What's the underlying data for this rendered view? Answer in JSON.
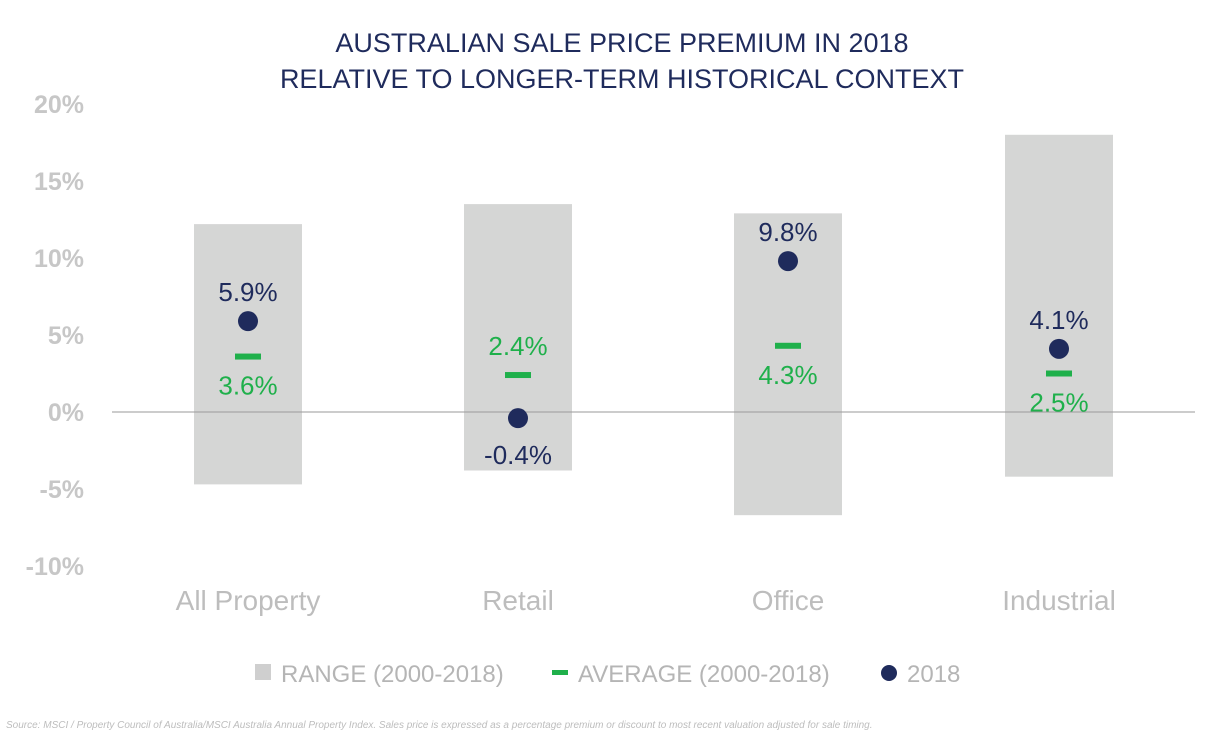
{
  "chart_data": {
    "type": "range-dot",
    "title": [
      "AUSTRALIAN SALE PRICE PREMIUM IN 2018",
      "RELATIVE TO LONGER-TERM HISTORICAL CONTEXT"
    ],
    "categories": [
      "All Property",
      "Retail",
      "Office",
      "Industrial"
    ],
    "ylim": [
      -10,
      20
    ],
    "yticks": [
      20,
      15,
      10,
      5,
      0,
      -5,
      -10
    ],
    "ytick_labels": [
      "20%",
      "15%",
      "10%",
      "5%",
      "0%",
      "-5%",
      "-10%"
    ],
    "series": [
      {
        "name": "RANGE (2000-2018)",
        "kind": "range",
        "low": [
          -4.7,
          -3.8,
          -6.7,
          -4.2
        ],
        "high": [
          12.2,
          13.5,
          12.9,
          18.0
        ]
      },
      {
        "name": "AVERAGE (2000-2018)",
        "kind": "marker-dash",
        "values": [
          3.6,
          2.4,
          4.3,
          2.5
        ],
        "labels": [
          "3.6%",
          "2.4%",
          "4.3%",
          "2.5%"
        ],
        "label_position": [
          "below",
          "above",
          "below",
          "below"
        ]
      },
      {
        "name": "2018",
        "kind": "marker-dot",
        "values": [
          5.9,
          -0.4,
          9.8,
          4.1
        ],
        "labels": [
          "5.9%",
          "-0.4%",
          "9.8%",
          "4.1%"
        ],
        "label_position": [
          "above",
          "below",
          "above",
          "above"
        ]
      }
    ],
    "legend_position": "bottom",
    "grid": false,
    "colors": {
      "range": "#d5d6d5",
      "average": "#1fb04b",
      "dot": "#1f2b5c",
      "zero_line": "#9a9a9a",
      "axis_text": "#c7c7c7",
      "title": "#1f2b5c"
    }
  },
  "source_note": "Source: MSCI / Property Council of Australia/MSCI Australia Annual Property Index. Sales price is expressed as a percentage premium or discount to most recent valuation adjusted for sale timing."
}
